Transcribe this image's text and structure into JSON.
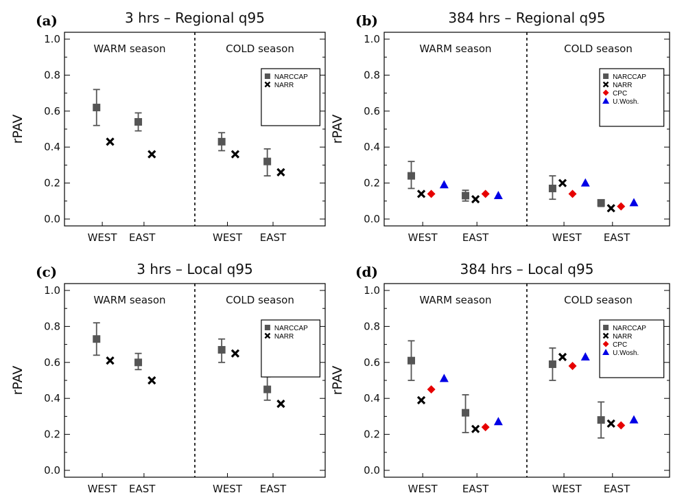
{
  "colors": {
    "NARCCAP": "#555555",
    "NARR": "#000000",
    "CPC": "#e60000",
    "U.Wosh.": "#0000e6"
  },
  "markers": {
    "NARCCAP": "square",
    "NARR": "x",
    "CPC": "diamond",
    "U.Wosh.": "triangle"
  },
  "chart_data": [
    {
      "type": "scatter",
      "panel_label": "(a)",
      "title": "3 hrs  –  Regional q95",
      "ylabel": "rPAV",
      "ylim": [
        0.0,
        1.0
      ],
      "yticks": [
        "0.0",
        "0.2",
        "0.4",
        "0.6",
        "0.8",
        "1.0"
      ],
      "season_labels": [
        "WARM season",
        "COLD season"
      ],
      "categories": [
        "WEST",
        "EAST",
        "WEST",
        "EAST"
      ],
      "legend": [
        "NARCCAP",
        "NARR"
      ],
      "legend_position": "upper-right",
      "series": [
        {
          "name": "NARCCAP",
          "values": [
            0.62,
            0.54,
            0.43,
            0.32
          ],
          "err_low": [
            0.52,
            0.49,
            0.38,
            0.24
          ],
          "err_high": [
            0.72,
            0.59,
            0.48,
            0.39
          ]
        },
        {
          "name": "NARR",
          "values": [
            0.43,
            0.36,
            0.36,
            0.26
          ]
        }
      ]
    },
    {
      "type": "scatter",
      "panel_label": "(b)",
      "title": "384 hrs  –  Regional q95",
      "ylabel": "rPAV",
      "ylim": [
        0.0,
        1.0
      ],
      "yticks": [
        "0.0",
        "0.2",
        "0.4",
        "0.6",
        "0.8",
        "1.0"
      ],
      "season_labels": [
        "WARM season",
        "COLD season"
      ],
      "categories": [
        "WEST",
        "EAST",
        "WEST",
        "EAST"
      ],
      "legend": [
        "NARCCAP",
        "NARR",
        "CPC",
        "U.Wosh."
      ],
      "legend_position": "upper-right",
      "series": [
        {
          "name": "NARCCAP",
          "values": [
            0.24,
            0.13,
            0.17,
            0.09
          ],
          "err_low": [
            0.17,
            0.1,
            0.11,
            0.07
          ],
          "err_high": [
            0.32,
            0.16,
            0.24,
            0.1
          ]
        },
        {
          "name": "NARR",
          "values": [
            0.14,
            0.11,
            0.2,
            0.06
          ]
        },
        {
          "name": "CPC",
          "values": [
            0.14,
            0.14,
            0.14,
            0.07
          ]
        },
        {
          "name": "U.Wosh.",
          "values": [
            0.19,
            0.13,
            0.2,
            0.09
          ]
        }
      ]
    },
    {
      "type": "scatter",
      "panel_label": "(c)",
      "title": "3 hrs  –  Local q95",
      "ylabel": "rPAV",
      "ylim": [
        0.0,
        1.0
      ],
      "yticks": [
        "0.0",
        "0.2",
        "0.4",
        "0.6",
        "0.8",
        "1.0"
      ],
      "season_labels": [
        "WARM season",
        "COLD season"
      ],
      "categories": [
        "WEST",
        "EAST",
        "WEST",
        "EAST"
      ],
      "legend": [
        "NARCCAP",
        "NARR"
      ],
      "legend_position": "upper-right",
      "series": [
        {
          "name": "NARCCAP",
          "values": [
            0.73,
            0.6,
            0.67,
            0.45
          ],
          "err_low": [
            0.64,
            0.56,
            0.6,
            0.39
          ],
          "err_high": [
            0.82,
            0.65,
            0.73,
            0.52
          ]
        },
        {
          "name": "NARR",
          "values": [
            0.61,
            0.5,
            0.65,
            0.37
          ]
        }
      ]
    },
    {
      "type": "scatter",
      "panel_label": "(d)",
      "title": "384 hrs  –  Local q95",
      "ylabel": "rPAV",
      "ylim": [
        0.0,
        1.0
      ],
      "yticks": [
        "0.0",
        "0.2",
        "0.4",
        "0.6",
        "0.8",
        "1.0"
      ],
      "season_labels": [
        "WARM season",
        "COLD season"
      ],
      "categories": [
        "WEST",
        "EAST",
        "WEST",
        "EAST"
      ],
      "legend": [
        "NARCCAP",
        "NARR",
        "CPC",
        "U.Wosh."
      ],
      "legend_position": "upper-right",
      "series": [
        {
          "name": "NARCCAP",
          "values": [
            0.61,
            0.32,
            0.59,
            0.28
          ],
          "err_low": [
            0.5,
            0.21,
            0.5,
            0.18
          ],
          "err_high": [
            0.72,
            0.42,
            0.68,
            0.38
          ]
        },
        {
          "name": "NARR",
          "values": [
            0.39,
            0.23,
            0.63,
            0.26
          ]
        },
        {
          "name": "CPC",
          "values": [
            0.45,
            0.24,
            0.58,
            0.25
          ]
        },
        {
          "name": "U.Wosh.",
          "values": [
            0.51,
            0.27,
            0.63,
            0.28
          ]
        }
      ]
    }
  ]
}
